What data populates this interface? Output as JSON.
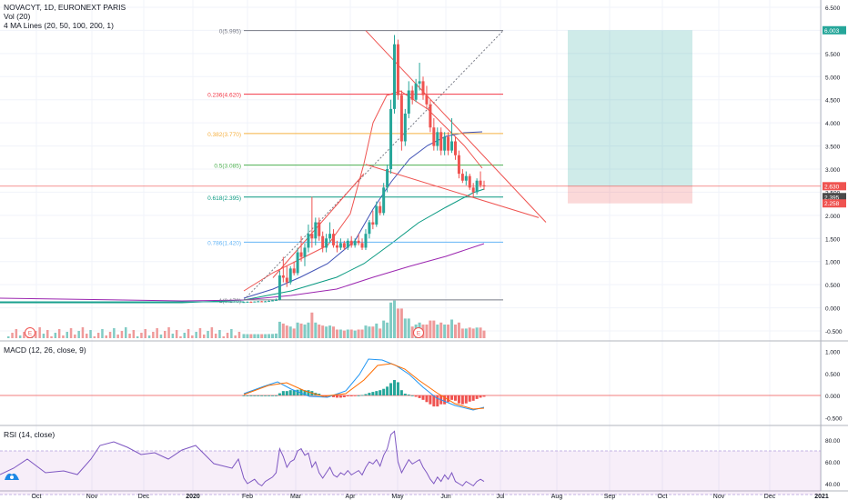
{
  "legend": {
    "symbol": "NOVACYT, 1D, EURONEXT PARIS",
    "vol": "Vol (20)",
    "ma": "4 MA Lines (20, 50, 100, 200, 1)",
    "macd": "MACD (12, 26, close, 9)",
    "rsi": "RSI (14, close)"
  },
  "time_axis": [
    "Oct",
    "Nov",
    "Dec",
    "2020",
    "Feb",
    "Mar",
    "Apr",
    "May",
    "Jun",
    "Jul",
    "Aug",
    "Sep",
    "Oct",
    "Nov",
    "Dec",
    "2021"
  ],
  "price_axis": [
    "6.500",
    "6.000",
    "5.500",
    "5.000",
    "4.500",
    "4.000",
    "3.500",
    "3.000",
    "2.500",
    "2.000",
    "1.500",
    "1.000",
    "0.500",
    "0.000",
    "-0.500"
  ],
  "macd_axis": [
    "1.000",
    "0.500",
    "0.000",
    "-0.500"
  ],
  "rsi_axis": [
    "80.00",
    "60.00",
    "40.00"
  ],
  "price_tags": [
    {
      "text": "6.003",
      "color": "#26a69a",
      "value": 6.003
    },
    {
      "text": "2.630",
      "color": "#ef5350",
      "value": 2.63
    },
    {
      "text": "2.395",
      "color": "#4a4a4a",
      "value": 2.395
    },
    {
      "text": "2.258",
      "color": "#ef5350",
      "value": 2.258
    }
  ],
  "earnings_markers": [
    "E",
    "E"
  ],
  "chart_data": {
    "type": "candlestick",
    "fib_levels": [
      {
        "label": "0(5.995)",
        "value": 5.995,
        "color": "#787b86"
      },
      {
        "label": "0.236(4.620)",
        "value": 4.62,
        "color": "#f23645"
      },
      {
        "label": "0.382(3.770)",
        "value": 3.77,
        "color": "#f5b041"
      },
      {
        "label": "0.5(3.085)",
        "value": 3.085,
        "color": "#4caf50"
      },
      {
        "label": "0.618(2.395)",
        "value": 2.395,
        "color": "#089981"
      },
      {
        "label": "0.786(1.420)",
        "value": 1.42,
        "color": "#64b5f6"
      },
      {
        "label": "1(0.170)",
        "value": 0.17,
        "color": "#787b86"
      }
    ],
    "price_range": [
      -0.5,
      6.5
    ],
    "position": {
      "target": 6.003,
      "entry": 2.63,
      "stop": 2.258
    },
    "candles": [
      [
        0.12,
        0.135,
        0.11,
        0.125
      ],
      [
        0.125,
        0.14,
        0.12,
        0.13
      ],
      [
        0.13,
        0.14,
        0.12,
        0.125
      ],
      [
        0.125,
        0.14,
        0.12,
        0.135
      ],
      [
        0.135,
        0.15,
        0.13,
        0.14
      ],
      [
        0.14,
        0.15,
        0.13,
        0.135
      ],
      [
        0.135,
        0.15,
        0.13,
        0.14
      ],
      [
        0.14,
        0.16,
        0.135,
        0.15
      ],
      [
        0.15,
        0.17,
        0.14,
        0.16
      ],
      [
        0.16,
        0.2,
        0.15,
        0.17
      ],
      [
        0.17,
        0.8,
        0.16,
        0.7
      ],
      [
        0.7,
        1.1,
        0.55,
        0.65
      ],
      [
        0.65,
        0.9,
        0.45,
        0.55
      ],
      [
        0.55,
        0.9,
        0.5,
        0.85
      ],
      [
        0.85,
        1.0,
        0.7,
        0.75
      ],
      [
        0.75,
        1.3,
        0.7,
        1.2
      ],
      [
        1.2,
        1.55,
        1.0,
        1.1
      ],
      [
        1.1,
        1.4,
        0.9,
        1.3
      ],
      [
        1.3,
        1.8,
        1.2,
        1.6
      ],
      [
        1.6,
        2.4,
        1.3,
        1.5
      ],
      [
        1.5,
        1.95,
        1.35,
        1.85
      ],
      [
        1.85,
        1.95,
        1.45,
        1.55
      ],
      [
        1.55,
        1.65,
        1.2,
        1.3
      ],
      [
        1.3,
        1.6,
        1.2,
        1.5
      ],
      [
        1.5,
        1.85,
        1.4,
        1.6
      ],
      [
        1.6,
        1.7,
        1.3,
        1.35
      ],
      [
        1.35,
        1.45,
        1.2,
        1.3
      ],
      [
        1.3,
        1.5,
        1.25,
        1.4
      ],
      [
        1.4,
        1.45,
        1.25,
        1.3
      ],
      [
        1.3,
        1.5,
        1.25,
        1.45
      ],
      [
        1.45,
        1.55,
        1.3,
        1.35
      ],
      [
        1.35,
        1.5,
        1.3,
        1.45
      ],
      [
        1.45,
        1.6,
        1.35,
        1.4
      ],
      [
        1.4,
        1.5,
        1.25,
        1.3
      ],
      [
        1.3,
        1.7,
        1.25,
        1.6
      ],
      [
        1.6,
        1.9,
        1.5,
        1.85
      ],
      [
        1.85,
        2.1,
        1.7,
        1.8
      ],
      [
        1.8,
        2.3,
        1.75,
        2.2
      ],
      [
        2.2,
        2.3,
        2.0,
        2.05
      ],
      [
        2.05,
        2.7,
        2.0,
        2.6
      ],
      [
        2.6,
        3.1,
        2.5,
        3.0
      ],
      [
        3.0,
        4.5,
        2.9,
        4.3
      ],
      [
        4.3,
        5.9,
        4.2,
        5.7
      ],
      [
        5.7,
        5.8,
        4.5,
        4.6
      ],
      [
        4.6,
        4.7,
        3.4,
        3.6
      ],
      [
        3.6,
        4.3,
        3.5,
        4.2
      ],
      [
        4.2,
        4.9,
        4.1,
        4.7
      ],
      [
        4.7,
        4.8,
        4.4,
        4.5
      ],
      [
        4.5,
        4.95,
        4.45,
        4.85
      ],
      [
        4.85,
        5.3,
        4.7,
        4.9
      ],
      [
        4.9,
        5.0,
        4.5,
        4.6
      ],
      [
        4.6,
        4.8,
        4.3,
        4.4
      ],
      [
        4.4,
        4.5,
        3.8,
        3.9
      ],
      [
        3.9,
        4.1,
        3.4,
        3.5
      ],
      [
        3.5,
        3.9,
        3.4,
        3.8
      ],
      [
        3.8,
        3.9,
        3.3,
        3.4
      ],
      [
        3.4,
        3.8,
        3.3,
        3.7
      ],
      [
        3.7,
        3.8,
        3.3,
        3.4
      ],
      [
        3.4,
        4.1,
        3.35,
        3.6
      ],
      [
        3.6,
        3.7,
        3.2,
        3.3
      ],
      [
        3.3,
        3.4,
        2.8,
        2.9
      ],
      [
        2.9,
        3.0,
        2.7,
        2.75
      ],
      [
        2.75,
        2.95,
        2.65,
        2.85
      ],
      [
        2.85,
        2.9,
        2.55,
        2.6
      ],
      [
        2.6,
        2.7,
        2.4,
        2.5
      ],
      [
        2.5,
        2.8,
        2.45,
        2.75
      ],
      [
        2.75,
        2.95,
        2.6,
        2.65
      ],
      [
        2.65,
        2.75,
        2.55,
        2.63
      ]
    ],
    "macd_hist": [
      0,
      0,
      0,
      0,
      0,
      0,
      0,
      0,
      0,
      0,
      0.05,
      0.1,
      0.1,
      0.12,
      0.12,
      0.13,
      0.14,
      0.12,
      0.12,
      0.1,
      0.06,
      0.04,
      -0.02,
      -0.03,
      -0.02,
      -0.04,
      -0.05,
      -0.05,
      -0.04,
      -0.02,
      -0.02,
      -0.01,
      0,
      0.01,
      0.03,
      0.06,
      0.08,
      0.1,
      0.12,
      0.15,
      0.2,
      0.28,
      0.35,
      0.3,
      0.12,
      0.04,
      0.02,
      0,
      -0.03,
      -0.06,
      -0.1,
      -0.15,
      -0.2,
      -0.25,
      -0.25,
      -0.2,
      -0.2,
      -0.15,
      -0.1,
      -0.12,
      -0.18,
      -0.2,
      -0.18,
      -0.14,
      -0.12,
      -0.08,
      -0.05,
      -0.03
    ],
    "rsi": [
      45,
      40,
      42,
      44,
      40,
      38,
      42,
      44,
      46,
      50,
      72,
      65,
      55,
      60,
      62,
      70,
      72,
      66,
      68,
      55,
      60,
      50,
      45,
      50,
      55,
      48,
      46,
      50,
      48,
      52,
      48,
      50,
      52,
      48,
      55,
      60,
      58,
      62,
      56,
      66,
      72,
      85,
      88,
      60,
      50,
      56,
      62,
      58,
      60,
      62,
      55,
      50,
      44,
      40,
      46,
      42,
      48,
      44,
      50,
      42,
      40,
      38,
      42,
      40,
      38,
      42,
      44,
      42
    ]
  }
}
